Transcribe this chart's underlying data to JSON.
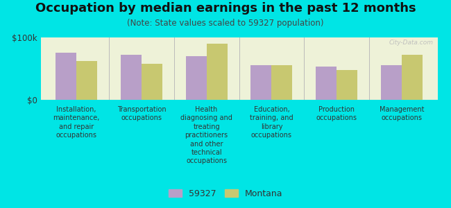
{
  "title": "Occupation by median earnings in the past 12 months",
  "subtitle": "(Note: State values scaled to 59327 population)",
  "background_color": "#00e5e5",
  "plot_bg_color": "#eef2d8",
  "categories": [
    "Installation,\nmaintenance,\nand repair\noccupations",
    "Transportation\noccupations",
    "Health\ndiagnosing and\ntreating\npractitioners\nand other\ntechnical\noccupations",
    "Education,\ntraining, and\nlibrary\noccupations",
    "Production\noccupations",
    "Management\noccupations"
  ],
  "series_59327": [
    75000,
    72000,
    70000,
    55000,
    53000,
    55000
  ],
  "series_montana": [
    62000,
    58000,
    90000,
    55000,
    48000,
    72000
  ],
  "color_59327": "#b89fc8",
  "color_montana": "#c8c870",
  "ylim": [
    0,
    100000
  ],
  "ytick_labels": [
    "$0",
    "$100k"
  ],
  "legend_59327": "59327",
  "legend_montana": "Montana",
  "title_fontsize": 13,
  "subtitle_fontsize": 8.5,
  "axis_label_fontsize": 7,
  "legend_fontsize": 9,
  "watermark": "City-Data.com"
}
